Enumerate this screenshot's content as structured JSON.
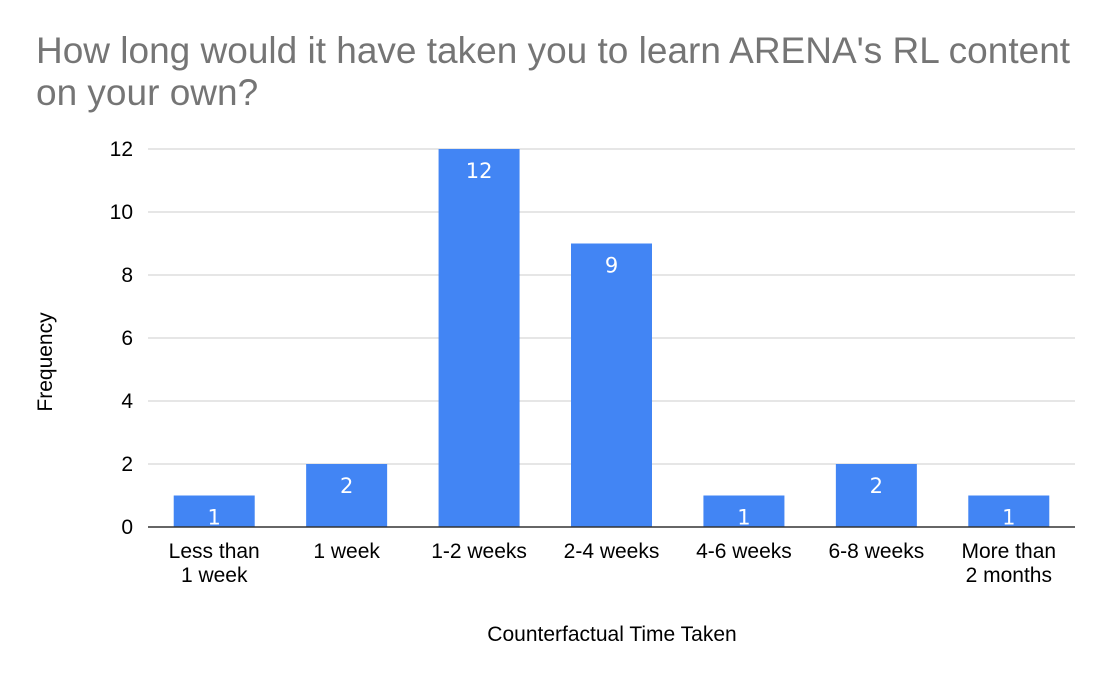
{
  "chart_data": {
    "type": "bar",
    "title": "How long would it have taken you to learn ARENA's RL content on your own?",
    "xlabel": "Counterfactual Time Taken",
    "ylabel": "Frequency",
    "categories": [
      [
        "Less than",
        "1 week"
      ],
      [
        "1 week"
      ],
      [
        "1-2 weeks"
      ],
      [
        "2-4 weeks"
      ],
      [
        "4-6 weeks"
      ],
      [
        "6-8 weeks"
      ],
      [
        "More than",
        "2 months"
      ]
    ],
    "values": [
      1,
      2,
      12,
      9,
      1,
      2,
      1
    ],
    "data_labels": [
      "1",
      "2",
      "12",
      "9",
      "1",
      "2",
      "1"
    ],
    "y_ticks": [
      "0",
      "2",
      "4",
      "6",
      "8",
      "10",
      "12"
    ],
    "ylim": [
      0,
      12
    ],
    "grid": true,
    "legend": "none",
    "bar_color": "#4285f4",
    "grid_color": "#cccccc",
    "axis_color": "#333333"
  }
}
